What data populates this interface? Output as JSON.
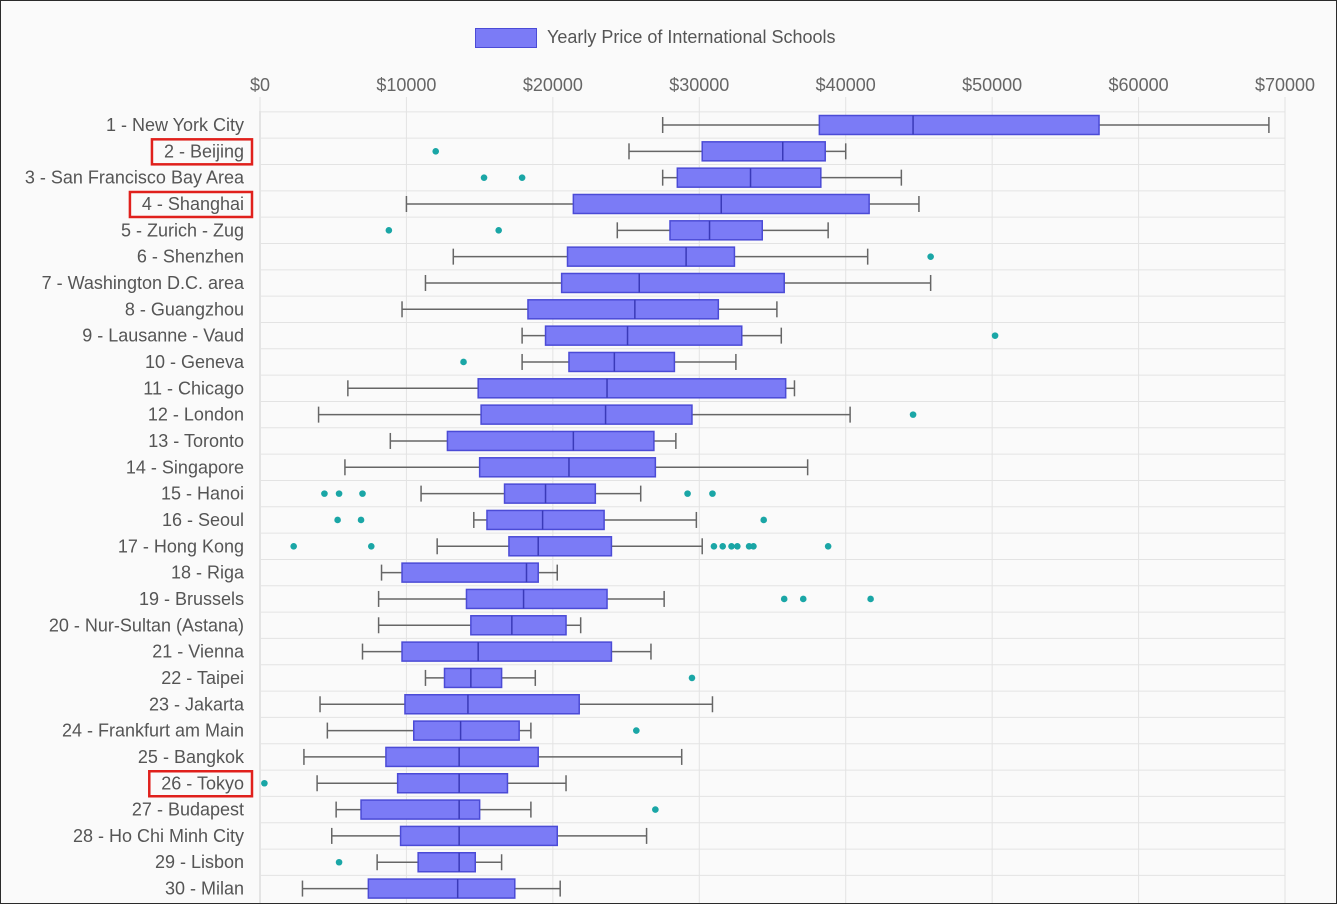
{
  "chart_data": {
    "type": "boxplot",
    "title": "",
    "xlabel": "",
    "ylabel": "",
    "legend": {
      "label": "Yearly Price of International Schools",
      "position": "top"
    },
    "xlim": [
      0,
      70000
    ],
    "x_ticks": [
      "$0",
      "$10000",
      "$20000",
      "$30000",
      "$40000",
      "$50000",
      "$60000",
      "$70000"
    ],
    "x_tick_values": [
      0,
      10000,
      20000,
      30000,
      40000,
      50000,
      60000,
      70000
    ],
    "grid": true,
    "highlighted_categories": [
      "2 - Beijing",
      "4 - Shanghai",
      "26 - Tokyo"
    ],
    "colors": {
      "box_fill": "#7b7bf6",
      "box_stroke": "#4b4bd6",
      "median": "#3a3ab8",
      "whisker": "#666666",
      "outlier": "#1aa6a6",
      "highlight": "#e0201c",
      "grid": "#e3e3e3"
    },
    "categories": [
      "1 - New York City",
      "2 - Beijing",
      "3 - San Francisco Bay Area",
      "4 - Shanghai",
      "5 - Zurich - Zug",
      "6 - Shenzhen",
      "7 - Washington D.C. area",
      "8 - Guangzhou",
      "9 - Lausanne - Vaud",
      "10 - Geneva",
      "11 - Chicago",
      "12 - London",
      "13 - Toronto",
      "14 - Singapore",
      "15 - Hanoi",
      "16 - Seoul",
      "17 - Hong Kong",
      "18 - Riga",
      "19 - Brussels",
      "20 - Nur-Sultan (Astana)",
      "21 - Vienna",
      "22 - Taipei",
      "23 - Jakarta",
      "24 - Frankfurt am Main",
      "25 - Bangkok",
      "26 - Tokyo",
      "27 - Budapest",
      "28 - Ho Chi Minh City",
      "29 - Lisbon",
      "30 - Milan"
    ],
    "boxes": [
      {
        "min": 27500,
        "q1": 38200,
        "median": 44600,
        "q3": 57300,
        "max": 68900,
        "outliers": []
      },
      {
        "min": 25200,
        "q1": 30200,
        "median": 35700,
        "q3": 38600,
        "max": 40000,
        "outliers": [
          12000
        ]
      },
      {
        "min": 27500,
        "q1": 28500,
        "median": 33500,
        "q3": 38300,
        "max": 43800,
        "outliers": [
          15300,
          17900
        ]
      },
      {
        "min": 10000,
        "q1": 21400,
        "median": 31500,
        "q3": 41600,
        "max": 45000,
        "outliers": []
      },
      {
        "min": 24400,
        "q1": 28000,
        "median": 30700,
        "q3": 34300,
        "max": 38800,
        "outliers": [
          8800,
          16300
        ]
      },
      {
        "min": 13200,
        "q1": 21000,
        "median": 29100,
        "q3": 32400,
        "max": 41500,
        "outliers": [
          45800
        ]
      },
      {
        "min": 11300,
        "q1": 20600,
        "median": 25900,
        "q3": 35800,
        "max": 45800,
        "outliers": []
      },
      {
        "min": 9700,
        "q1": 18300,
        "median": 25600,
        "q3": 31300,
        "max": 35300,
        "outliers": []
      },
      {
        "min": 17900,
        "q1": 19500,
        "median": 25100,
        "q3": 32900,
        "max": 35600,
        "outliers": [
          50200
        ]
      },
      {
        "min": 17900,
        "q1": 21100,
        "median": 24200,
        "q3": 28300,
        "max": 32500,
        "outliers": [
          13900
        ]
      },
      {
        "min": 6000,
        "q1": 14900,
        "median": 23700,
        "q3": 35900,
        "max": 36500,
        "outliers": []
      },
      {
        "min": 4000,
        "q1": 15100,
        "median": 23600,
        "q3": 29500,
        "max": 40300,
        "outliers": [
          44600
        ]
      },
      {
        "min": 8900,
        "q1": 12800,
        "median": 21400,
        "q3": 26900,
        "max": 28400,
        "outliers": []
      },
      {
        "min": 5800,
        "q1": 15000,
        "median": 21100,
        "q3": 27000,
        "max": 37400,
        "outliers": []
      },
      {
        "min": 11000,
        "q1": 16700,
        "median": 19500,
        "q3": 22900,
        "max": 26000,
        "outliers": [
          4400,
          5400,
          7000,
          29200,
          30900
        ]
      },
      {
        "min": 14600,
        "q1": 15500,
        "median": 19300,
        "q3": 23500,
        "max": 29800,
        "outliers": [
          5300,
          6900,
          34400
        ]
      },
      {
        "min": 12100,
        "q1": 17000,
        "median": 19000,
        "q3": 24000,
        "max": 30200,
        "outliers": [
          2300,
          7600,
          31000,
          31600,
          32200,
          32600,
          33400,
          33700,
          38800
        ]
      },
      {
        "min": 8300,
        "q1": 9700,
        "median": 18200,
        "q3": 19000,
        "max": 20300,
        "outliers": []
      },
      {
        "min": 8100,
        "q1": 14100,
        "median": 18000,
        "q3": 23700,
        "max": 27600,
        "outliers": [
          35800,
          37100,
          41700
        ]
      },
      {
        "min": 8100,
        "q1": 14400,
        "median": 17200,
        "q3": 20900,
        "max": 21900,
        "outliers": []
      },
      {
        "min": 7000,
        "q1": 9700,
        "median": 14900,
        "q3": 24000,
        "max": 26700,
        "outliers": []
      },
      {
        "min": 11300,
        "q1": 12600,
        "median": 14400,
        "q3": 16500,
        "max": 18800,
        "outliers": [
          29500
        ]
      },
      {
        "min": 4100,
        "q1": 9900,
        "median": 14200,
        "q3": 21800,
        "max": 30900,
        "outliers": []
      },
      {
        "min": 4600,
        "q1": 10500,
        "median": 13700,
        "q3": 17700,
        "max": 18500,
        "outliers": [
          25700
        ]
      },
      {
        "min": 3000,
        "q1": 8600,
        "median": 13600,
        "q3": 19000,
        "max": 28800,
        "outliers": []
      },
      {
        "min": 3900,
        "q1": 9400,
        "median": 13600,
        "q3": 16900,
        "max": 20900,
        "outliers": [
          300
        ]
      },
      {
        "min": 5200,
        "q1": 6900,
        "median": 13600,
        "q3": 15000,
        "max": 18500,
        "outliers": [
          27000
        ]
      },
      {
        "min": 4900,
        "q1": 9600,
        "median": 13600,
        "q3": 20300,
        "max": 26400,
        "outliers": []
      },
      {
        "min": 8000,
        "q1": 10800,
        "median": 13600,
        "q3": 14700,
        "max": 16500,
        "outliers": [
          5400
        ]
      },
      {
        "min": 2900,
        "q1": 7400,
        "median": 13500,
        "q3": 17400,
        "max": 20500,
        "outliers": []
      }
    ]
  }
}
